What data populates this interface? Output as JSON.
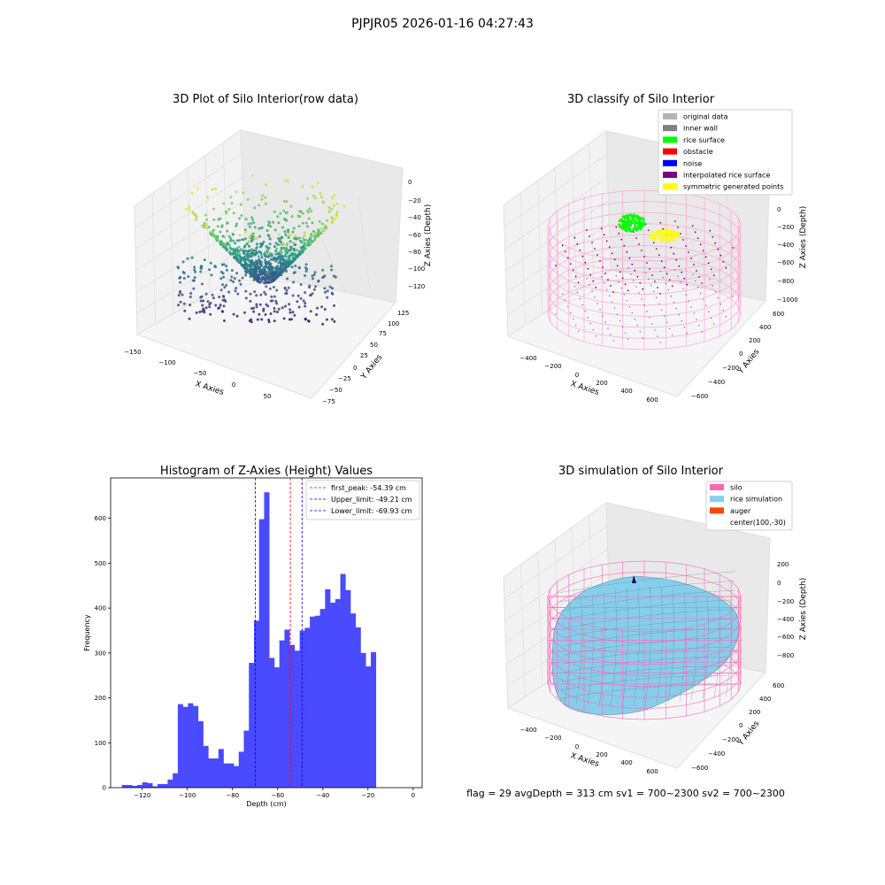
{
  "suptitle": "PJPJR05 2026-01-16 04:27:43",
  "footer": "flag = 29  avgDepth = 313 cm  sv1 = 700~2300  sv2 = 700~2300",
  "chart_data": [
    {
      "type": "scatter3d",
      "title": "3D Plot of Silo Interior(row data)",
      "xlabel": "X Axies",
      "ylabel": "Y Axies",
      "zlabel": "Z Axies (Depth)",
      "xticks": [
        "−150",
        "−100",
        "−50",
        "0",
        "50"
      ],
      "yticks": [
        "−75",
        "−50",
        "−25",
        "0",
        "25",
        "50",
        "75",
        "100",
        "125"
      ],
      "zticks": [
        "0",
        "−20",
        "−40",
        "−60",
        "−80",
        "−100",
        "−120"
      ],
      "colormap": "viridis"
    },
    {
      "type": "scatter3d",
      "title": "3D classify of Silo Interior",
      "xlabel": "X Axies",
      "ylabel": "Y Axies",
      "zlabel": "Z Axies (Depth)",
      "xticks": [
        "−400",
        "−200",
        "0",
        "200",
        "400",
        "600"
      ],
      "yticks": [
        "−600",
        "−400",
        "−200",
        "0",
        "200",
        "400",
        "600"
      ],
      "zticks": [
        "200",
        "0",
        "−200",
        "−400",
        "−600",
        "−800",
        "−1000"
      ],
      "legend_position": "top-right",
      "legend": [
        {
          "name": "original data",
          "color": "#b3b3b3"
        },
        {
          "name": "inner wall",
          "color": "#808080"
        },
        {
          "name": "rice surface",
          "color": "#00ff00"
        },
        {
          "name": "obstacle",
          "color": "#ff0000"
        },
        {
          "name": "noise",
          "color": "#0000ff"
        },
        {
          "name": "interpolated rice surface",
          "color": "#800080"
        },
        {
          "name": "symmetric generated points",
          "color": "#ffff00"
        }
      ],
      "wire_color": "#ff69b4"
    },
    {
      "type": "bar",
      "title": "Histogram of Z-Axies (Height) Values",
      "xlabel": "Depth (cm)",
      "ylabel": "Frequency",
      "bar_color": "#4a4aff",
      "xlim": [
        -134,
        4
      ],
      "ylim": [
        0,
        690
      ],
      "xticks": [
        -120,
        -100,
        -80,
        -60,
        -40,
        -20,
        0
      ],
      "xtick_labels": [
        "−120",
        "−100",
        "−80",
        "−60",
        "−40",
        "−20",
        "0"
      ],
      "yticks": [
        0,
        100,
        200,
        300,
        400,
        500,
        600
      ],
      "bin_start": -129,
      "bin_width": 2.25,
      "values": [
        6,
        6,
        4,
        6,
        12,
        10,
        3,
        8,
        8,
        18,
        32,
        186,
        180,
        188,
        182,
        148,
        93,
        65,
        65,
        86,
        54,
        54,
        48,
        80,
        127,
        278,
        372,
        598,
        658,
        289,
        268,
        328,
        352,
        318,
        305,
        350,
        356,
        381,
        383,
        398,
        442,
        412,
        420,
        476,
        440,
        388,
        357,
        300,
        270,
        302
      ],
      "vlines": [
        {
          "x": -54.39,
          "color": "#ff0000",
          "label": "first_peak: -54.39 cm"
        },
        {
          "x": -49.21,
          "color": "#0000ff",
          "label": "Upper_limit: -49.21 cm"
        },
        {
          "x": -69.93,
          "color": "#0000ff",
          "label": "Lower_limit: -69.93 cm"
        }
      ],
      "legend_position": "top-right"
    },
    {
      "type": "surface3d",
      "title": "3D simulation of Silo Interior",
      "xlabel": "X Axies",
      "ylabel": "Y Axies",
      "zlabel": "Z Axies (Depth)",
      "xticks": [
        "−400",
        "−200",
        "0",
        "200",
        "400",
        "600"
      ],
      "yticks": [
        "−600",
        "−400",
        "−200",
        "0",
        "200",
        "400",
        "600"
      ],
      "zticks": [
        "200",
        "0",
        "−200",
        "−400",
        "−600",
        "−800"
      ],
      "legend_position": "top-right",
      "legend": [
        {
          "name": "silo",
          "color": "#ff69b4"
        },
        {
          "name": "rice simulation",
          "color": "#87ceeb"
        },
        {
          "name": "auger",
          "color": "#ff4500"
        },
        {
          "name": "center(100,-30)",
          "color": ""
        }
      ]
    }
  ]
}
